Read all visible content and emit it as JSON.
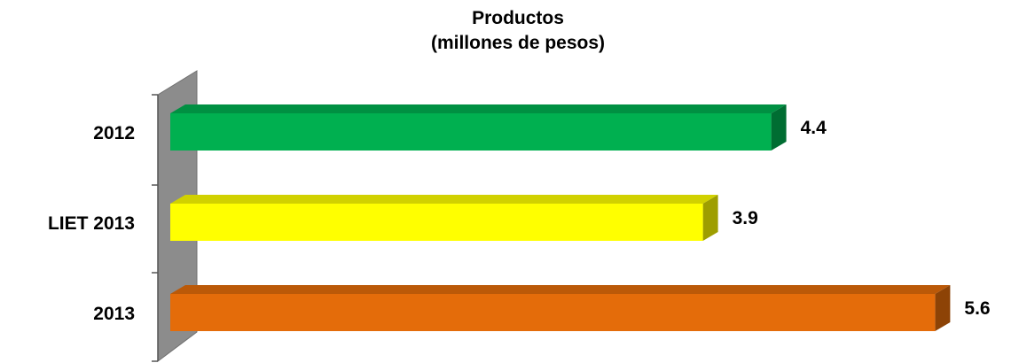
{
  "chart_data": {
    "type": "bar",
    "orientation": "horizontal",
    "title": "Productos",
    "subtitle": "(millones de pesos)",
    "categories": [
      "2012",
      "LIET 2013",
      "2013"
    ],
    "values": [
      4.4,
      3.9,
      5.6
    ],
    "value_labels": [
      "4.4",
      "3.9",
      "5.6"
    ],
    "colors": [
      "#00b050",
      "#ffff00",
      "#e46c0a"
    ],
    "xlim": [
      0,
      5.6
    ],
    "grid": false,
    "legend": "none",
    "style": "3d"
  }
}
